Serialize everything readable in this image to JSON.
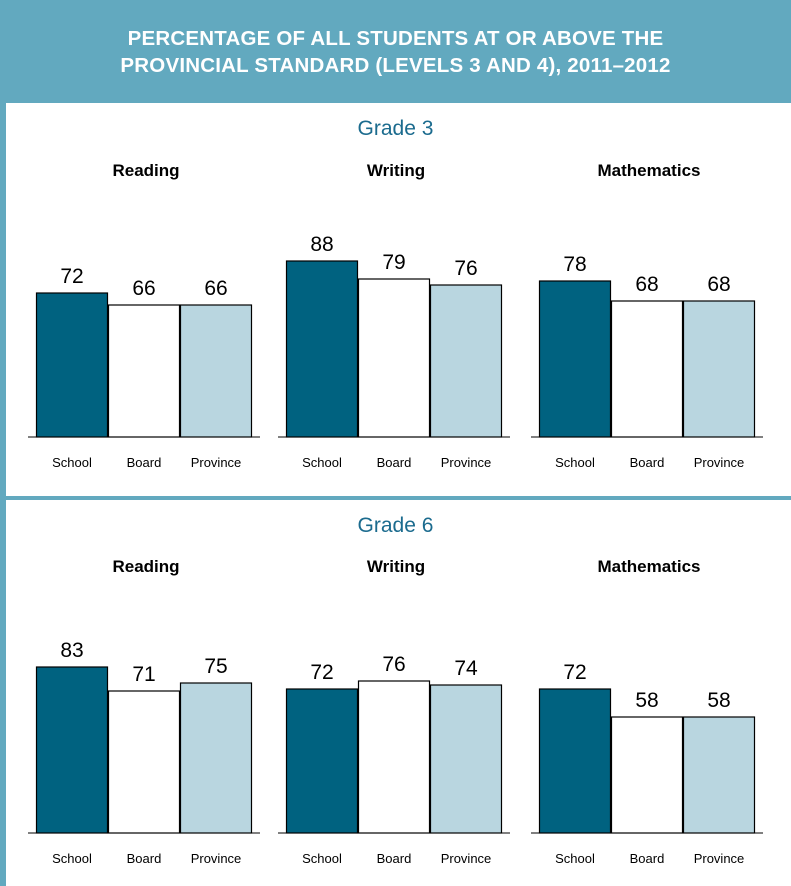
{
  "colors": {
    "header_bg": "#62a9bf",
    "frame": "#62a9bf",
    "grade_title": "#1b6b8e",
    "school": "#006280",
    "board": "#ffffff",
    "province": "#b9d6e0",
    "bar_stroke": "#000000"
  },
  "header": {
    "line1": "PERCENTAGE OF ALL STUDENTS AT OR ABOVE THE",
    "line2": "PROVINCIAL STANDARD (LEVELS 3 AND 4), 2011–2012"
  },
  "chart_data": [
    {
      "type": "bar",
      "grade": "Grade 3",
      "title": "Reading",
      "categories": [
        "School",
        "Board",
        "Province"
      ],
      "values": [
        72,
        66,
        66
      ],
      "ylim": [
        0,
        100
      ]
    },
    {
      "type": "bar",
      "grade": "Grade 3",
      "title": "Writing",
      "categories": [
        "School",
        "Board",
        "Province"
      ],
      "values": [
        88,
        79,
        76
      ],
      "ylim": [
        0,
        100
      ]
    },
    {
      "type": "bar",
      "grade": "Grade 3",
      "title": "Mathematics",
      "categories": [
        "School",
        "Board",
        "Province"
      ],
      "values": [
        78,
        68,
        68
      ],
      "ylim": [
        0,
        100
      ]
    },
    {
      "type": "bar",
      "grade": "Grade 6",
      "title": "Reading",
      "categories": [
        "School",
        "Board",
        "Province"
      ],
      "values": [
        83,
        71,
        75
      ],
      "ylim": [
        0,
        100
      ]
    },
    {
      "type": "bar",
      "grade": "Grade 6",
      "title": "Writing",
      "categories": [
        "School",
        "Board",
        "Province"
      ],
      "values": [
        72,
        76,
        74
      ],
      "ylim": [
        0,
        100
      ]
    },
    {
      "type": "bar",
      "grade": "Grade 6",
      "title": "Mathematics",
      "categories": [
        "School",
        "Board",
        "Province"
      ],
      "values": [
        72,
        58,
        58
      ],
      "ylim": [
        0,
        100
      ]
    }
  ],
  "grades": [
    "Grade 3",
    "Grade 6"
  ]
}
